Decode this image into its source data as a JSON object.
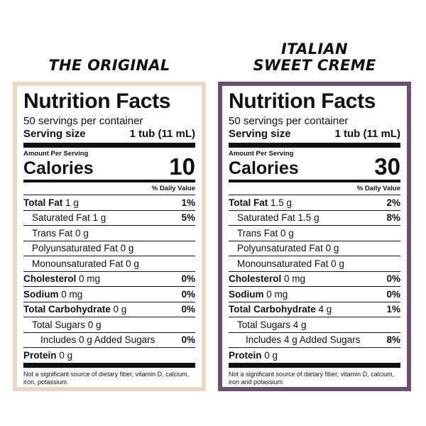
{
  "panels": [
    {
      "heading": "THE ORIGINAL",
      "title": "Nutrition Facts",
      "servings": "50 servings per container",
      "serving_size_label": "Serving size",
      "serving_size_value": "1 tub (11 mL)",
      "amount_per_serving": "Amount Per Serving",
      "calories_label": "Calories",
      "calories_value": "10",
      "daily_value_header": "% Daily Value",
      "rows": [
        {
          "bold": "Total Fat",
          "plain": " 1 g",
          "pct": "1%"
        },
        {
          "bold": "",
          "plain": "Saturated Fat 1 g",
          "pct": "5%"
        },
        {
          "bold": "",
          "plain": "Trans Fat 0 g",
          "pct": ""
        },
        {
          "bold": "",
          "plain": "Polyunsaturated Fat 0 g",
          "pct": ""
        },
        {
          "bold": "",
          "plain": "Monounsaturated Fat 0 g",
          "pct": ""
        },
        {
          "bold": "Cholesterol",
          "plain": " 0 mg",
          "pct": "0%"
        },
        {
          "bold": "Sodium",
          "plain": " 0 mg",
          "pct": "0%"
        },
        {
          "bold": "Total Carbohydrate",
          "plain": " 0 g",
          "pct": "0%"
        },
        {
          "bold": "",
          "plain": "Total Sugars 0 g",
          "pct": ""
        },
        {
          "bold": "",
          "plain": "Includes 0 g Added Sugars",
          "pct": "0%"
        },
        {
          "bold": "Protein",
          "plain": " 0 g",
          "pct": ""
        }
      ],
      "footnote": "Not a significant source of dietary fiber, vitamin D, calcium, iron, potassium."
    },
    {
      "heading": "ITALIAN\nSWEET CREME",
      "title": "Nutrition Facts",
      "servings": "50 servings per container",
      "serving_size_label": "Serving size",
      "serving_size_value": "1 tub (11 mL)",
      "amount_per_serving": "Amount Per Serving",
      "calories_label": "Calories",
      "calories_value": "30",
      "daily_value_header": "% Daily Value",
      "rows": [
        {
          "bold": "Total Fat",
          "plain": " 1.5 g",
          "pct": "2%"
        },
        {
          "bold": "",
          "plain": "Saturated Fat 1.5 g",
          "pct": "8%"
        },
        {
          "bold": "",
          "plain": "Trans Fat 0 g",
          "pct": ""
        },
        {
          "bold": "",
          "plain": "Polyunsaturated Fat 0 g",
          "pct": ""
        },
        {
          "bold": "",
          "plain": "Monounsaturated Fat 0 g",
          "pct": ""
        },
        {
          "bold": "Cholesterol",
          "plain": " 0 mg",
          "pct": "0%"
        },
        {
          "bold": "Sodium",
          "plain": " 0 mg",
          "pct": "0%"
        },
        {
          "bold": "Total Carbohydrate",
          "plain": " 4 g",
          "pct": "1%"
        },
        {
          "bold": "",
          "plain": "Total Sugars 4 g",
          "pct": ""
        },
        {
          "bold": "",
          "plain": "Includes 4 g Added Sugars",
          "pct": "8%"
        },
        {
          "bold": "Protein",
          "plain": " 0 g",
          "pct": ""
        }
      ],
      "footnote": "Not a significant source of dietary fiber, vitamin D, calcium, iron and potassium."
    }
  ],
  "colors": {
    "original_border": "#e8d9c2",
    "sweet_creme_border": "#6b5072"
  }
}
